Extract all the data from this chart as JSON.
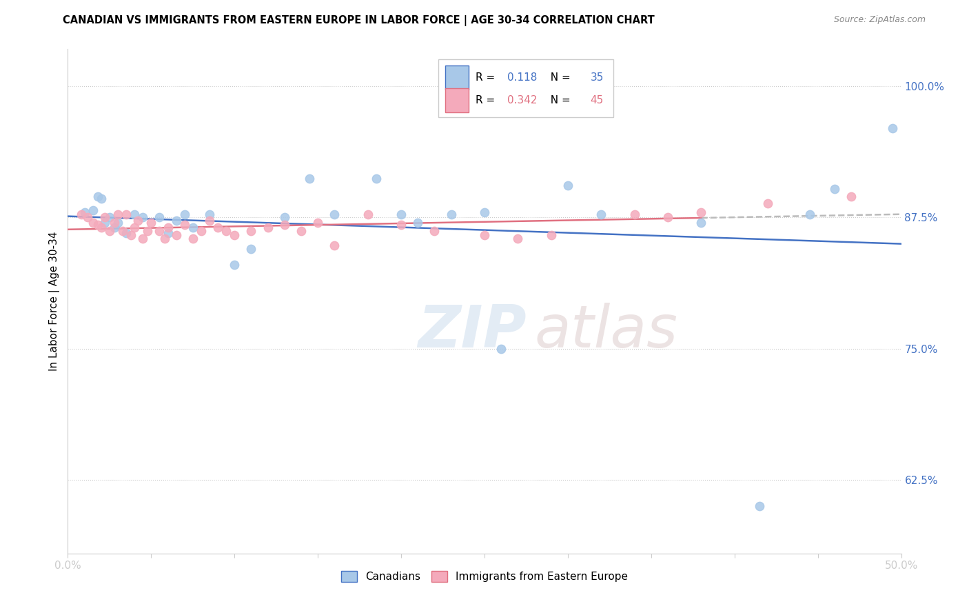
{
  "title": "CANADIAN VS IMMIGRANTS FROM EASTERN EUROPE IN LABOR FORCE | AGE 30-34 CORRELATION CHART",
  "source": "Source: ZipAtlas.com",
  "ylabel": "In Labor Force | Age 30-34",
  "xlim": [
    0.0,
    0.5
  ],
  "ylim": [
    0.555,
    1.035
  ],
  "canadians_R": "0.118",
  "canadians_N": "35",
  "immigrants_R": "0.342",
  "immigrants_N": "45",
  "canadians_color": "#A8C8E8",
  "immigrants_color": "#F4AABB",
  "trend_canadian_color": "#4472C4",
  "trend_immigrant_color": "#E07080",
  "trend_dashed_color": "#BBBBBB",
  "yticks": [
    0.625,
    0.75,
    0.875,
    1.0
  ],
  "ytick_labels": [
    "62.5%",
    "75.0%",
    "87.5%",
    "100.0%"
  ],
  "canadians_x": [
    0.01,
    0.015,
    0.018,
    0.02,
    0.022,
    0.025,
    0.028,
    0.03,
    0.035,
    0.04,
    0.045,
    0.055,
    0.06,
    0.065,
    0.07,
    0.075,
    0.085,
    0.1,
    0.11,
    0.13,
    0.145,
    0.16,
    0.185,
    0.2,
    0.21,
    0.23,
    0.25,
    0.26,
    0.3,
    0.32,
    0.38,
    0.415,
    0.445,
    0.46,
    0.495
  ],
  "canadians_y": [
    0.88,
    0.882,
    0.895,
    0.893,
    0.87,
    0.875,
    0.865,
    0.87,
    0.86,
    0.878,
    0.875,
    0.875,
    0.86,
    0.872,
    0.878,
    0.865,
    0.878,
    0.83,
    0.845,
    0.875,
    0.912,
    0.878,
    0.912,
    0.878,
    0.87,
    0.878,
    0.88,
    0.75,
    0.905,
    0.878,
    0.87,
    0.6,
    0.878,
    0.902,
    0.96
  ],
  "immigrants_x": [
    0.008,
    0.012,
    0.015,
    0.018,
    0.02,
    0.022,
    0.025,
    0.028,
    0.03,
    0.033,
    0.035,
    0.038,
    0.04,
    0.042,
    0.045,
    0.048,
    0.05,
    0.055,
    0.058,
    0.06,
    0.065,
    0.07,
    0.075,
    0.08,
    0.085,
    0.09,
    0.095,
    0.1,
    0.11,
    0.12,
    0.13,
    0.14,
    0.15,
    0.16,
    0.18,
    0.2,
    0.22,
    0.25,
    0.27,
    0.29,
    0.34,
    0.36,
    0.38,
    0.42,
    0.47
  ],
  "immigrants_y": [
    0.878,
    0.875,
    0.87,
    0.868,
    0.865,
    0.875,
    0.862,
    0.87,
    0.878,
    0.862,
    0.878,
    0.858,
    0.865,
    0.872,
    0.855,
    0.862,
    0.87,
    0.862,
    0.855,
    0.865,
    0.858,
    0.868,
    0.855,
    0.862,
    0.872,
    0.865,
    0.862,
    0.858,
    0.862,
    0.865,
    0.868,
    0.862,
    0.87,
    0.848,
    0.878,
    0.868,
    0.862,
    0.858,
    0.855,
    0.858,
    0.878,
    0.875,
    0.88,
    0.888,
    0.895
  ],
  "watermark_zip": "ZIP",
  "watermark_atlas": "atlas"
}
